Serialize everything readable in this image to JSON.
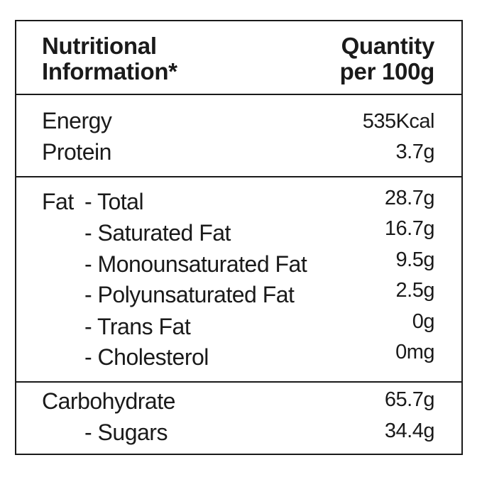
{
  "header": {
    "col1_line1": "Nutritional",
    "col1_line2": "Information*",
    "col2_line1": "Quantity",
    "col2_line2": "per 100g"
  },
  "sections": [
    {
      "rows": [
        {
          "label": "Energy",
          "value": "535Kcal"
        },
        {
          "label": "Protein",
          "value": "3.7g"
        }
      ]
    },
    {
      "group_label": "Fat",
      "rows": [
        {
          "label": "- Total",
          "value": "28.7g"
        },
        {
          "label": "- Saturated Fat",
          "value": "16.7g"
        },
        {
          "label": "- Monounsaturated Fat",
          "value": "9.5g"
        },
        {
          "label": "- Polyunsaturated Fat",
          "value": "2.5g"
        },
        {
          "label": "- Trans Fat",
          "value": "0g"
        },
        {
          "label": "- Cholesterol",
          "value": "0mg"
        }
      ]
    },
    {
      "rows": [
        {
          "label": "Carbohydrate",
          "value": "65.7g"
        },
        {
          "label": "- Sugars",
          "value": "34.4g"
        }
      ]
    }
  ]
}
